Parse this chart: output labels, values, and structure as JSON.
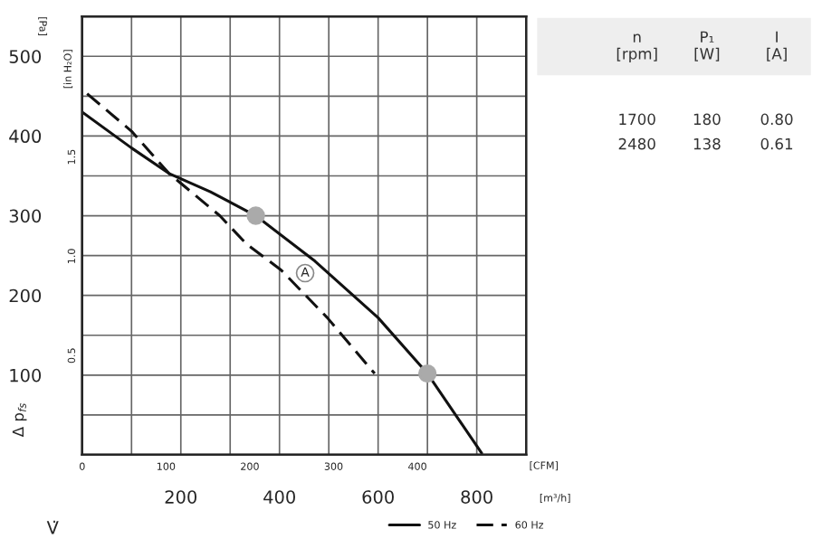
{
  "chart_data": {
    "type": "line",
    "xlabel": "V̇",
    "ylabel": "Δ p$_{fs}$",
    "y2label": "[in H₂O]",
    "x2label": "[CFM]",
    "series": [
      {
        "name": "50 Hz",
        "color": "#111111",
        "line_style": "solid",
        "x": [
          0,
          100,
          176,
          260,
          352,
          472,
          600,
          700,
          810
        ],
        "values": [
          430,
          385,
          353,
          330,
          300,
          243,
          172,
          102,
          2
        ]
      },
      {
        "name": "60 Hz",
        "color": "#111111",
        "line_style": "dashed",
        "x": [
          10,
          100,
          176,
          279,
          334,
          403,
          497,
          593
        ],
        "values": [
          453,
          406,
          353,
          300,
          264,
          232,
          172,
          102
        ]
      },
      {
        "type": "scatter",
        "color": "#aaaaaa",
        "marker": "circle",
        "x": [
          352,
          700
        ],
        "values": [
          300,
          102
        ]
      }
    ],
    "xlim": [
      0,
      900
    ],
    "xticks": [
      {
        "value": 0,
        "label": null
      },
      {
        "value": 100,
        "label": null
      },
      200,
      {
        "value": 300,
        "label": null
      },
      400,
      {
        "value": 500,
        "label": null
      },
      600,
      {
        "value": 700,
        "label": null
      },
      800,
      {
        "value": 900,
        "label": null
      }
    ],
    "ylim": [
      0,
      550
    ],
    "yticks": [
      {
        "value": 0,
        "label": null
      },
      {
        "value": 50,
        "label": null
      },
      100,
      {
        "value": 150,
        "label": null
      },
      200,
      {
        "value": 250,
        "label": null
      },
      300,
      {
        "value": 350,
        "label": null
      },
      400,
      {
        "value": 450,
        "label": null
      },
      500
    ],
    "x2lim": [
      0,
      529.7
    ],
    "x2ticks": [
      0,
      100,
      200,
      300,
      400
    ],
    "y2lim": [
      0,
      2.208
    ],
    "y2ticks": [
      0.5,
      {
        "value": 1.0,
        "label": "1.0"
      },
      1.5
    ],
    "grid": true,
    "legend": "bottom right",
    "annotations": [
      "[Pa]",
      "[m³/h]",
      {
        "text": "A",
        "x": 452,
        "y": 228
      },
      "n\n[rpm]",
      "P₁\n[W]",
      "I\n[A]",
      "1700",
      "180",
      "0.80",
      "2480",
      "138",
      "0.61"
    ]
  }
}
